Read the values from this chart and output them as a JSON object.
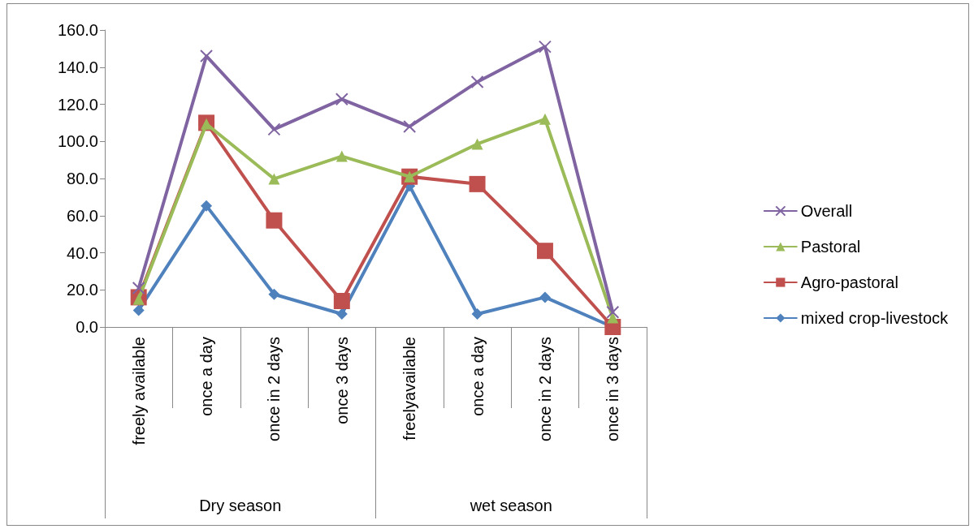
{
  "chart_data": {
    "type": "line",
    "categories": [
      "freely available",
      "once a day",
      "once in 2 days",
      "once 3 days",
      "freelyavailable",
      "once a day",
      "once in 2 days",
      "once in 3 days"
    ],
    "series": [
      {
        "name": "Overall",
        "color": "#8064a2",
        "marker": "cross",
        "values": [
          21,
          146,
          106.5,
          122.7,
          108,
          132,
          151,
          8
        ]
      },
      {
        "name": "Pastoral",
        "color": "#9bbb59",
        "marker": "triangle",
        "values": [
          15,
          109.4,
          79.8,
          92,
          81,
          98.6,
          112,
          5
        ]
      },
      {
        "name": "Agro-pastoral",
        "color": "#c0504d",
        "marker": "square",
        "values": [
          16,
          110,
          57.4,
          14,
          81,
          77,
          41,
          0
        ]
      },
      {
        "name": "mixed crop-livestock",
        "color": "#4f81bd",
        "marker": "diamond",
        "values": [
          9,
          65.3,
          17.6,
          7,
          76,
          7,
          16,
          0
        ]
      }
    ],
    "annotations": [
      "Dry season",
      "wet season"
    ],
    "ylim": [
      0,
      160
    ],
    "yticks": [
      {
        "value": 0,
        "label": "0.0"
      },
      {
        "value": 20,
        "label": "20.0"
      },
      {
        "value": 40,
        "label": "40.0"
      },
      {
        "value": 60,
        "label": "60.0"
      },
      {
        "value": 80,
        "label": "80.0"
      },
      {
        "value": 100,
        "label": "100.0"
      },
      {
        "value": 120,
        "label": "120.0"
      },
      {
        "value": 140,
        "label": "140.0"
      },
      {
        "value": 160,
        "label": "160.0"
      }
    ],
    "grid": false,
    "legend": "right",
    "line_style": "solid"
  }
}
